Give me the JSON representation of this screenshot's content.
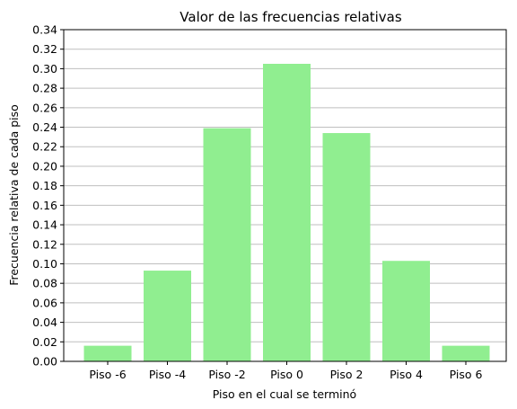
{
  "chart_data": {
    "type": "bar",
    "title": "Valor de las frecuencias relativas",
    "xlabel": "Piso en el cual se terminó",
    "ylabel": "Frecuencia relativa de cada piso",
    "categories": [
      "Piso -6",
      "Piso -4",
      "Piso -2",
      "Piso 0",
      "Piso 2",
      "Piso 4",
      "Piso 6"
    ],
    "values": [
      0.016,
      0.093,
      0.239,
      0.305,
      0.234,
      0.103,
      0.016
    ],
    "ylim": [
      0,
      0.34
    ],
    "yticks": [
      "0.00",
      "0.02",
      "0.04",
      "0.06",
      "0.08",
      "0.10",
      "0.12",
      "0.14",
      "0.16",
      "0.18",
      "0.20",
      "0.22",
      "0.24",
      "0.26",
      "0.28",
      "0.30",
      "0.32",
      "0.34"
    ],
    "grid": "y",
    "bar_color": "#90ee90",
    "grid_color": "#bfbfbf"
  }
}
